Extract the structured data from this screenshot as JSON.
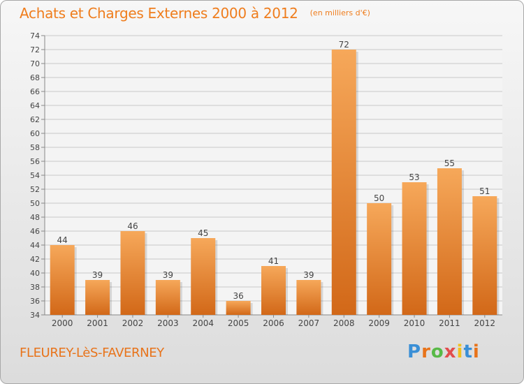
{
  "header": {
    "title": "Achats et Charges Externes 2000 à 2012",
    "unit": "(en milliers d'€)"
  },
  "footer": {
    "town": "FLEUREY-LèS-FAVERNEY",
    "logo": {
      "letters": [
        "P",
        "r",
        "o",
        "x",
        "i",
        "t",
        "i"
      ],
      "colors": [
        "#3a8fd6",
        "#e8731a",
        "#58b947",
        "#e24d4d",
        "#f2c01e",
        "#3a8fd6",
        "#e8731a"
      ]
    }
  },
  "colors": {
    "bar_light": "#f6a85a",
    "bar_dark": "#d26818",
    "accent": "#ef7d1d",
    "grid": "#c9c9c9",
    "text": "#444444"
  },
  "chart_data": {
    "type": "bar",
    "categories": [
      "2000",
      "2001",
      "2002",
      "2003",
      "2004",
      "2005",
      "2006",
      "2007",
      "2008",
      "2009",
      "2010",
      "2011",
      "2012"
    ],
    "values": [
      44,
      39,
      46,
      39,
      45,
      36,
      41,
      39,
      72,
      50,
      53,
      55,
      51
    ],
    "ylim": [
      34,
      74
    ],
    "ytick_step": 2,
    "grid": true,
    "data_labels": true
  }
}
